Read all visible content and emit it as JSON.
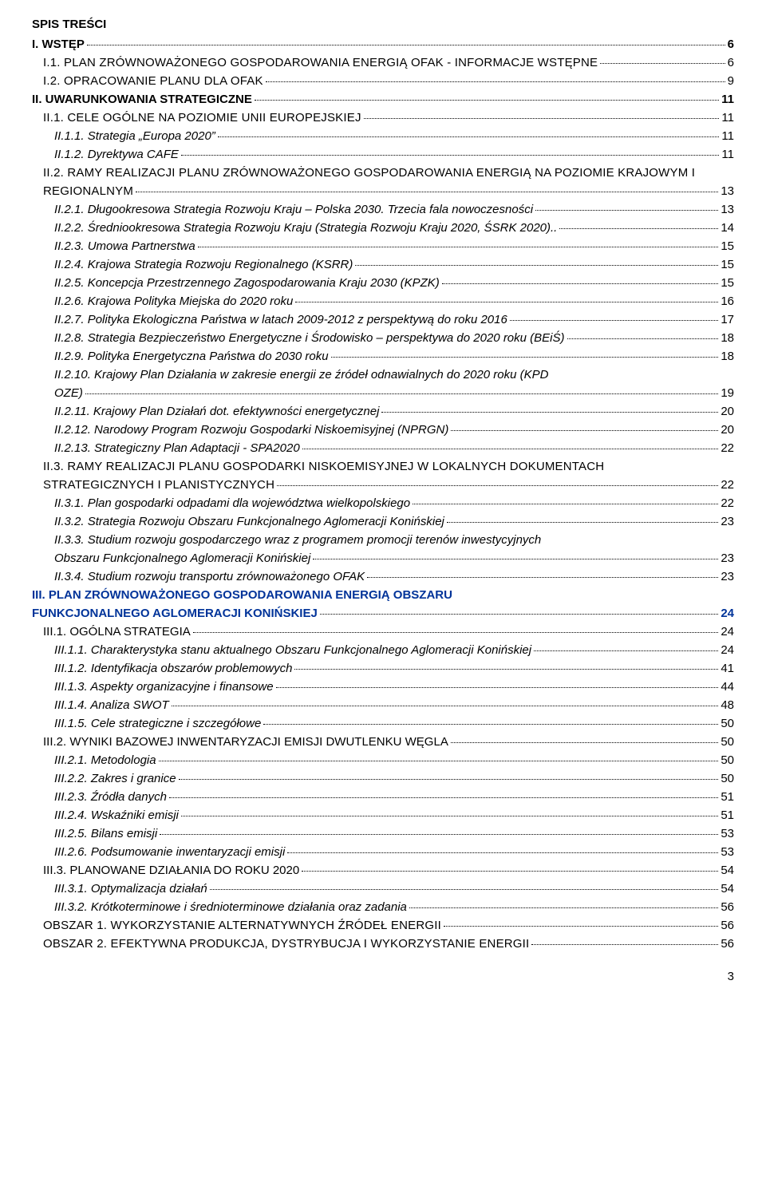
{
  "document": {
    "tocTitle": "SPIS TREŚCI",
    "footerPage": "3",
    "entries": [
      {
        "level": 0,
        "label": "I. WSTĘP",
        "page": "6",
        "bold": true
      },
      {
        "level": 1,
        "label": "I.1. PLAN ZRÓWNOWAŻONEGO GOSPODAROWANIA ENERGIĄ OFAK - INFORMACJE WSTĘPNE",
        "page": "6",
        "smallcaps": true
      },
      {
        "level": 1,
        "label": "I.2. OPRACOWANIE PLANU DLA OFAK",
        "page": "9",
        "smallcaps": true
      },
      {
        "level": 0,
        "label": "II. UWARUNKOWANIA STRATEGICZNE",
        "page": "11",
        "bold": true
      },
      {
        "level": 1,
        "label": "II.1. CELE OGÓLNE NA POZIOMIE UNII EUROPEJSKIEJ",
        "page": "11",
        "smallcaps": true
      },
      {
        "level": 2,
        "label": "II.1.1. Strategia „Europa 2020”",
        "page": "11",
        "italic": true
      },
      {
        "level": 2,
        "label": "II.1.2. Dyrektywa CAFE",
        "page": "11",
        "italic": true
      },
      {
        "level": 1,
        "label": "II.2. RAMY REALIZACJI PLANU ZRÓWNOWAŻONEGO GOSPODAROWANIA ENERGIĄ NA POZIOMIE KRAJOWYM I",
        "smallcaps": true,
        "nopage": true
      },
      {
        "level": 1,
        "label": "REGIONALNYM",
        "page": "13",
        "smallcaps": true
      },
      {
        "level": 2,
        "label": "II.2.1. Długookresowa Strategia Rozwoju Kraju – Polska 2030. Trzecia fala nowoczesności",
        "page": "13",
        "italic": true
      },
      {
        "level": 2,
        "label": "II.2.2. Średniookresowa Strategia Rozwoju Kraju (Strategia Rozwoju Kraju 2020, ŚSRK 2020)..",
        "page": "14",
        "italic": true
      },
      {
        "level": 2,
        "label": "II.2.3. Umowa Partnerstwa",
        "page": "15",
        "italic": true
      },
      {
        "level": 2,
        "label": "II.2.4. Krajowa Strategia Rozwoju Regionalnego (KSRR)",
        "page": "15",
        "italic": true
      },
      {
        "level": 2,
        "label": "II.2.5. Koncepcja Przestrzennego Zagospodarowania Kraju 2030 (KPZK)",
        "page": "15",
        "italic": true
      },
      {
        "level": 2,
        "label": "II.2.6. Krajowa Polityka Miejska do 2020 roku",
        "page": "16",
        "italic": true
      },
      {
        "level": 2,
        "label": "II.2.7. Polityka Ekologiczna Państwa w latach 2009-2012 z perspektywą do roku 2016",
        "page": "17",
        "italic": true
      },
      {
        "level": 2,
        "label": "II.2.8. Strategia Bezpieczeństwo Energetyczne i Środowisko – perspektywa do 2020 roku (BEiŚ)",
        "page": "18",
        "italic": true
      },
      {
        "level": 2,
        "label": "II.2.9. Polityka Energetyczna Państwa do 2030 roku",
        "page": "18",
        "italic": true
      },
      {
        "level": 2,
        "label": "II.2.10. Krajowy Plan Działania w zakresie energii ze źródeł odnawialnych do 2020 roku (KPD",
        "italic": true,
        "nopage": true
      },
      {
        "level": 2,
        "label": "OZE)",
        "page": "19",
        "italic": true
      },
      {
        "level": 2,
        "label": "II.2.11. Krajowy Plan Działań dot. efektywności energetycznej",
        "page": "20",
        "italic": true
      },
      {
        "level": 2,
        "label": "II.2.12. Narodowy Program Rozwoju Gospodarki Niskoemisyjnej (NPRGN)",
        "page": "20",
        "italic": true
      },
      {
        "level": 2,
        "label": "II.2.13. Strategiczny Plan Adaptacji - SPA2020",
        "page": "22",
        "italic": true
      },
      {
        "level": 1,
        "label": "II.3. RAMY REALIZACJI PLANU GOSPODARKI NISKOEMISYJNEJ W LOKALNYCH DOKUMENTACH",
        "smallcaps": true,
        "nopage": true
      },
      {
        "level": 1,
        "label": "STRATEGICZNYCH I PLANISTYCZNYCH",
        "page": "22",
        "smallcaps": true
      },
      {
        "level": 2,
        "label": "II.3.1. Plan gospodarki odpadami dla województwa wielkopolskiego",
        "page": "22",
        "italic": true
      },
      {
        "level": 2,
        "label": "II.3.2. Strategia Rozwoju Obszaru Funkcjonalnego Aglomeracji Konińskiej",
        "page": "23",
        "italic": true
      },
      {
        "level": 2,
        "label": "II.3.3. Studium rozwoju gospodarczego wraz z programem promocji terenów inwestycyjnych",
        "italic": true,
        "nopage": true
      },
      {
        "level": 2,
        "label": "Obszaru Funkcjonalnego Aglomeracji Konińskiej",
        "page": "23",
        "italic": true
      },
      {
        "level": 2,
        "label": "II.3.4. Studium rozwoju transportu zrównoważonego OFAK",
        "page": "23",
        "italic": true
      },
      {
        "level": 0,
        "label": "III. PLAN ZRÓWNOWAŻONEGO GOSPODAROWANIA ENERGIĄ OBSZARU",
        "bold": true,
        "blue": true,
        "nopage": true
      },
      {
        "level": 0,
        "label": "FUNKCJONALNEGO AGLOMERACJI KONIŃSKIEJ",
        "page": "24",
        "bold": true,
        "blue": true
      },
      {
        "level": 1,
        "label": "III.1. OGÓLNA STRATEGIA",
        "page": "24"
      },
      {
        "level": 2,
        "label": "III.1.1. Charakterystyka stanu aktualnego Obszaru Funkcjonalnego Aglomeracji Konińskiej",
        "page": "24",
        "italic": true
      },
      {
        "level": 2,
        "label": "III.1.2. Identyfikacja obszarów problemowych",
        "page": "41",
        "italic": true
      },
      {
        "level": 2,
        "label": "III.1.3. Aspekty organizacyjne i finansowe",
        "page": "44",
        "italic": true
      },
      {
        "level": 2,
        "label": "III.1.4. Analiza SWOT",
        "page": "48",
        "italic": true
      },
      {
        "level": 2,
        "label": "III.1.5. Cele strategiczne i szczegółowe",
        "page": "50",
        "italic": true
      },
      {
        "level": 1,
        "label": "III.2. WYNIKI BAZOWEJ INWENTARYZACJI EMISJI DWUTLENKU WĘGLA",
        "page": "50"
      },
      {
        "level": 2,
        "label": "III.2.1. Metodologia",
        "page": "50",
        "italic": true
      },
      {
        "level": 2,
        "label": "III.2.2. Zakres i granice",
        "page": "50",
        "italic": true
      },
      {
        "level": 2,
        "label": "III.2.3. Źródła danych",
        "page": "51",
        "italic": true
      },
      {
        "level": 2,
        "label": "III.2.4. Wskaźniki emisji",
        "page": "51",
        "italic": true
      },
      {
        "level": 2,
        "label": "III.2.5. Bilans emisji",
        "page": "53",
        "italic": true
      },
      {
        "level": 2,
        "label": "III.2.6. Podsumowanie inwentaryzacji emisji",
        "page": "53",
        "italic": true
      },
      {
        "level": 1,
        "label": "III.3. PLANOWANE DZIAŁANIA DO ROKU 2020",
        "page": "54"
      },
      {
        "level": 2,
        "label": "III.3.1. Optymalizacja działań",
        "page": "54",
        "italic": true
      },
      {
        "level": 2,
        "label": "III.3.2. Krótkoterminowe i średnioterminowe działania oraz zadania",
        "page": "56",
        "italic": true
      },
      {
        "level": 1,
        "label": "OBSZAR 1. WYKORZYSTANIE ALTERNATYWNYCH ŹRÓDEŁ ENERGII",
        "page": "56",
        "smallcaps": true
      },
      {
        "level": 1,
        "label": "OBSZAR 2. EFEKTYWNA PRODUKCJA, DYSTRYBUCJA I WYKORZYSTANIE ENERGII",
        "page": "56",
        "smallcaps": true
      }
    ]
  }
}
